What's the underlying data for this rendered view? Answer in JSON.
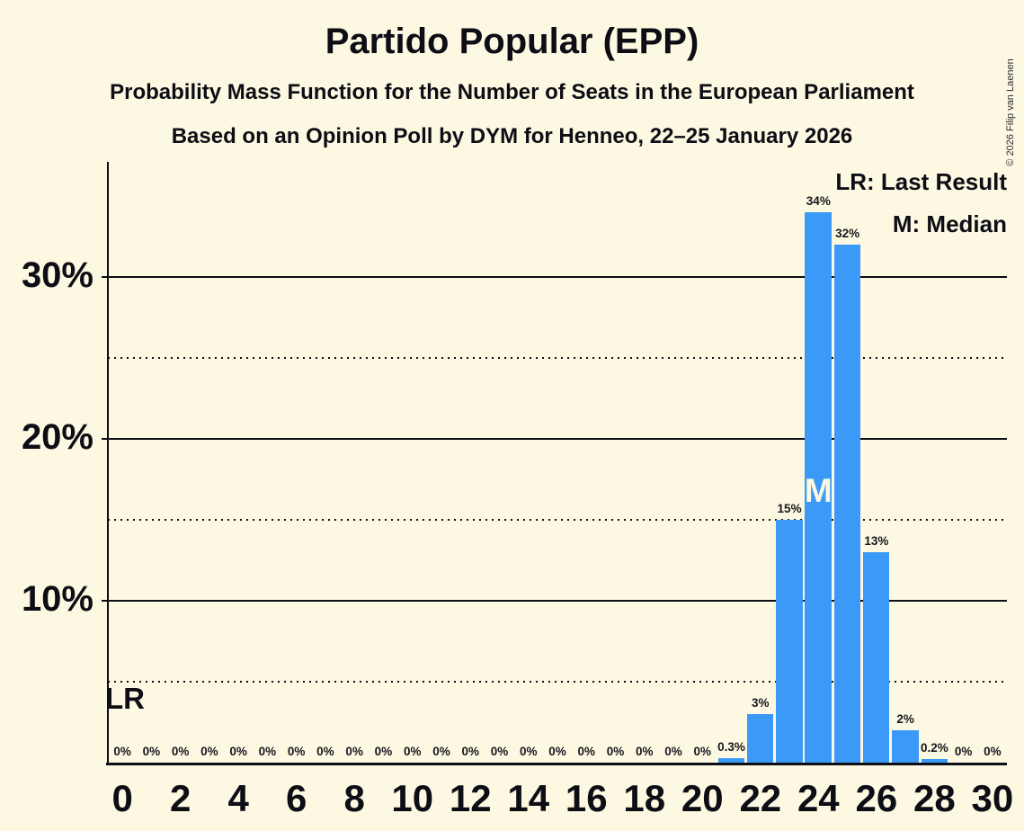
{
  "copyright": "© 2026 Filip van Laenen",
  "colors": {
    "text": "#0D0D15",
    "background": "#FDF8E1",
    "bar": "#3B99F8"
  },
  "chart_data": {
    "type": "bar",
    "title": "Partido Popular (EPP)",
    "subtitle": "Probability Mass Function for the Number of Seats in the European Parliament",
    "source_line": "Based on an Opinion Poll by DYM for Henneo, 22–25 January 2026",
    "categories": [
      0,
      1,
      2,
      3,
      4,
      5,
      6,
      7,
      8,
      9,
      10,
      11,
      12,
      13,
      14,
      15,
      16,
      17,
      18,
      19,
      20,
      21,
      22,
      23,
      24,
      25,
      26,
      27,
      28,
      29,
      30
    ],
    "values": [
      0,
      0,
      0,
      0,
      0,
      0,
      0,
      0,
      0,
      0,
      0,
      0,
      0,
      0,
      0,
      0,
      0,
      0,
      0,
      0,
      0,
      0.3,
      3,
      15,
      34,
      32,
      13,
      2,
      0.2,
      0,
      0
    ],
    "bar_labels": [
      "0%",
      "0%",
      "0%",
      "0%",
      "0%",
      "0%",
      "0%",
      "0%",
      "0%",
      "0%",
      "0%",
      "0%",
      "0%",
      "0%",
      "0%",
      "0%",
      "0%",
      "0%",
      "0%",
      "0%",
      "0%",
      "0.3%",
      "3%",
      "15%",
      "34%",
      "32%",
      "13%",
      "2%",
      "0.2%",
      "0%",
      "0%"
    ],
    "x_tick_labels": [
      "0",
      "2",
      "4",
      "6",
      "8",
      "10",
      "12",
      "14",
      "16",
      "18",
      "20",
      "22",
      "24",
      "26",
      "28",
      "30"
    ],
    "y_ticks": [
      {
        "value": 10,
        "label": "10%"
      },
      {
        "value": 20,
        "label": "20%"
      },
      {
        "value": 30,
        "label": "30%"
      }
    ],
    "y_dotted_lines": [
      5,
      15,
      25
    ],
    "ylim": [
      0,
      37
    ],
    "grid": "horizontal",
    "legend_position": "top-right",
    "legend": [
      "LR: Last Result",
      "M: Median"
    ],
    "median_seat": 24,
    "median_marker": "M",
    "last_result_marker": "LR"
  }
}
